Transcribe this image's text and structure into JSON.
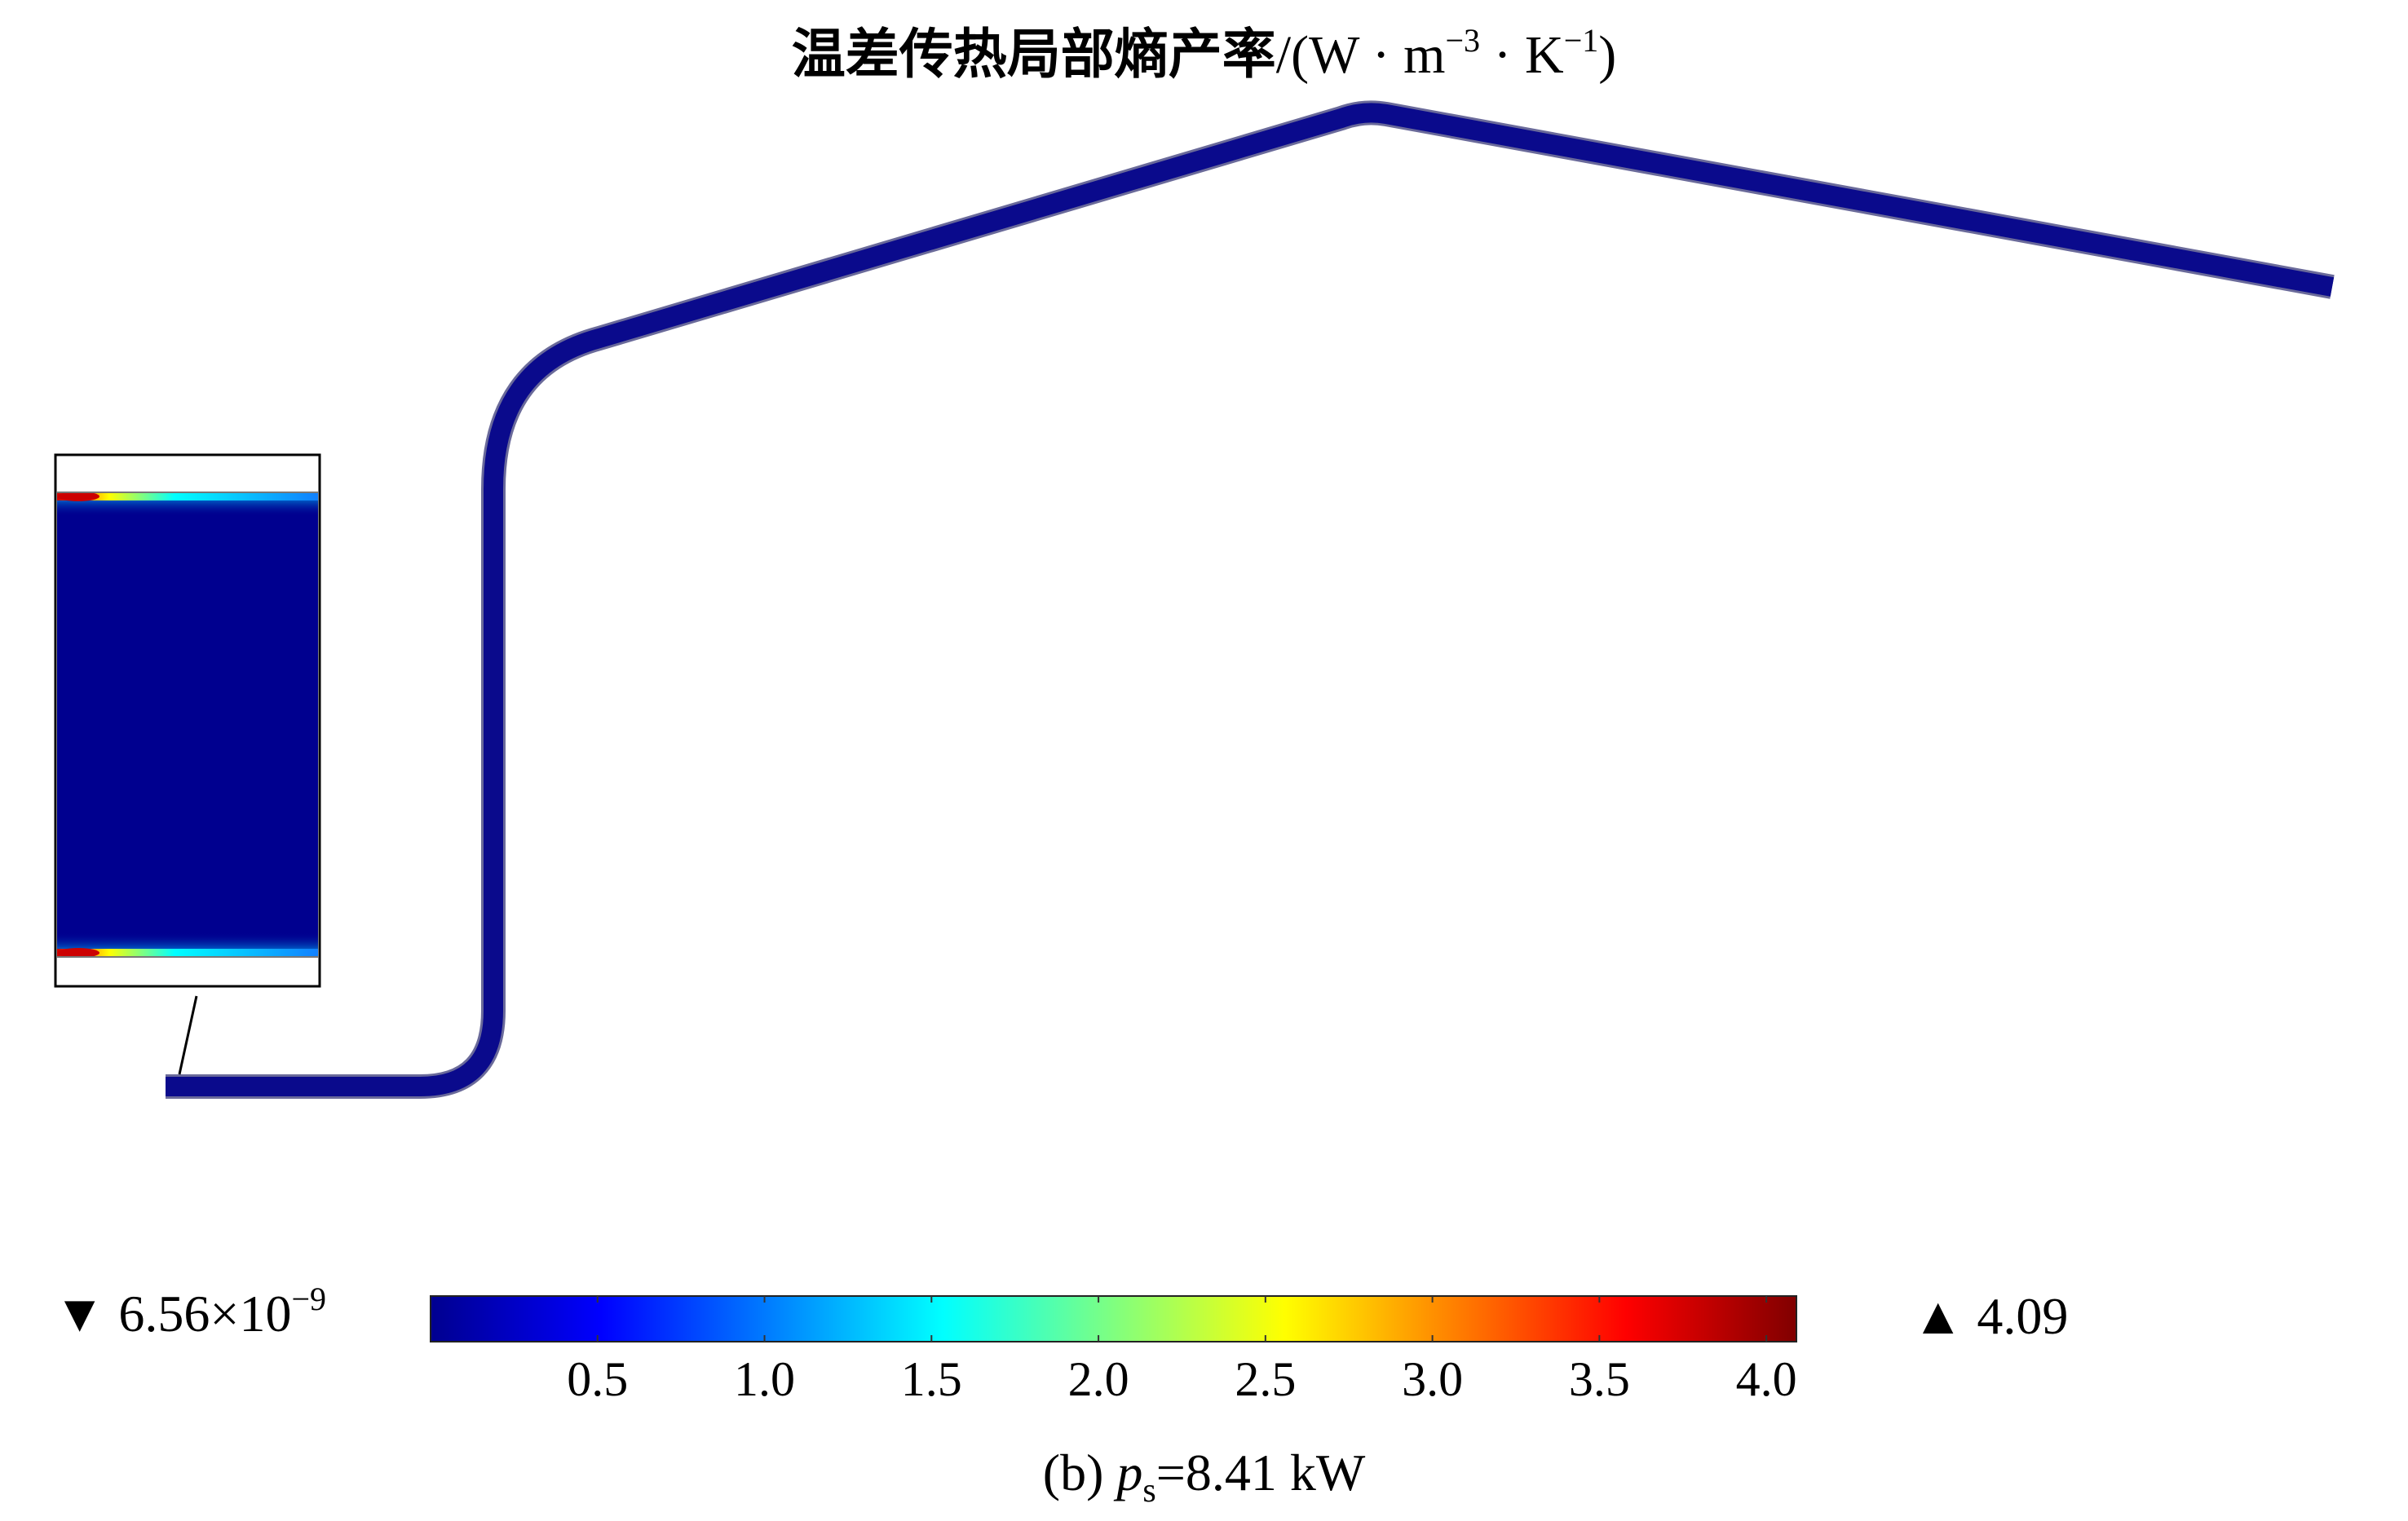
{
  "title": {
    "quantity": "温差传热局部熵产率",
    "unit_open": "/(W · m",
    "unit_exp1": "−3",
    "unit_mid": " · K",
    "unit_exp2": "−1",
    "unit_close": ")"
  },
  "legend": {
    "min_marker": "▼",
    "min_value": "6.56×10",
    "min_exp": "−9",
    "max_marker": "▲",
    "max_value": "4.09",
    "ticks": [
      "0.5",
      "1.0",
      "1.5",
      "2.0",
      "2.5",
      "3.0",
      "3.5",
      "4.0"
    ],
    "tick_values": [
      0.5,
      1.0,
      1.5,
      2.0,
      2.5,
      3.0,
      3.5,
      4.0
    ],
    "range": [
      0,
      4.09
    ],
    "colormap": "jet",
    "colormap_stops": [
      "#00008f",
      "#0000ff",
      "#00ffff",
      "#ffff00",
      "#ff0000",
      "#800000"
    ]
  },
  "caption": {
    "label": "(b) ",
    "var": "p",
    "sub": "s",
    "value": "=8.41 kW"
  },
  "colors": {
    "pipe": "#0a0a8c",
    "inset_field": "#00008f",
    "hot_spot": "#cc0000",
    "outline": "#000000"
  }
}
